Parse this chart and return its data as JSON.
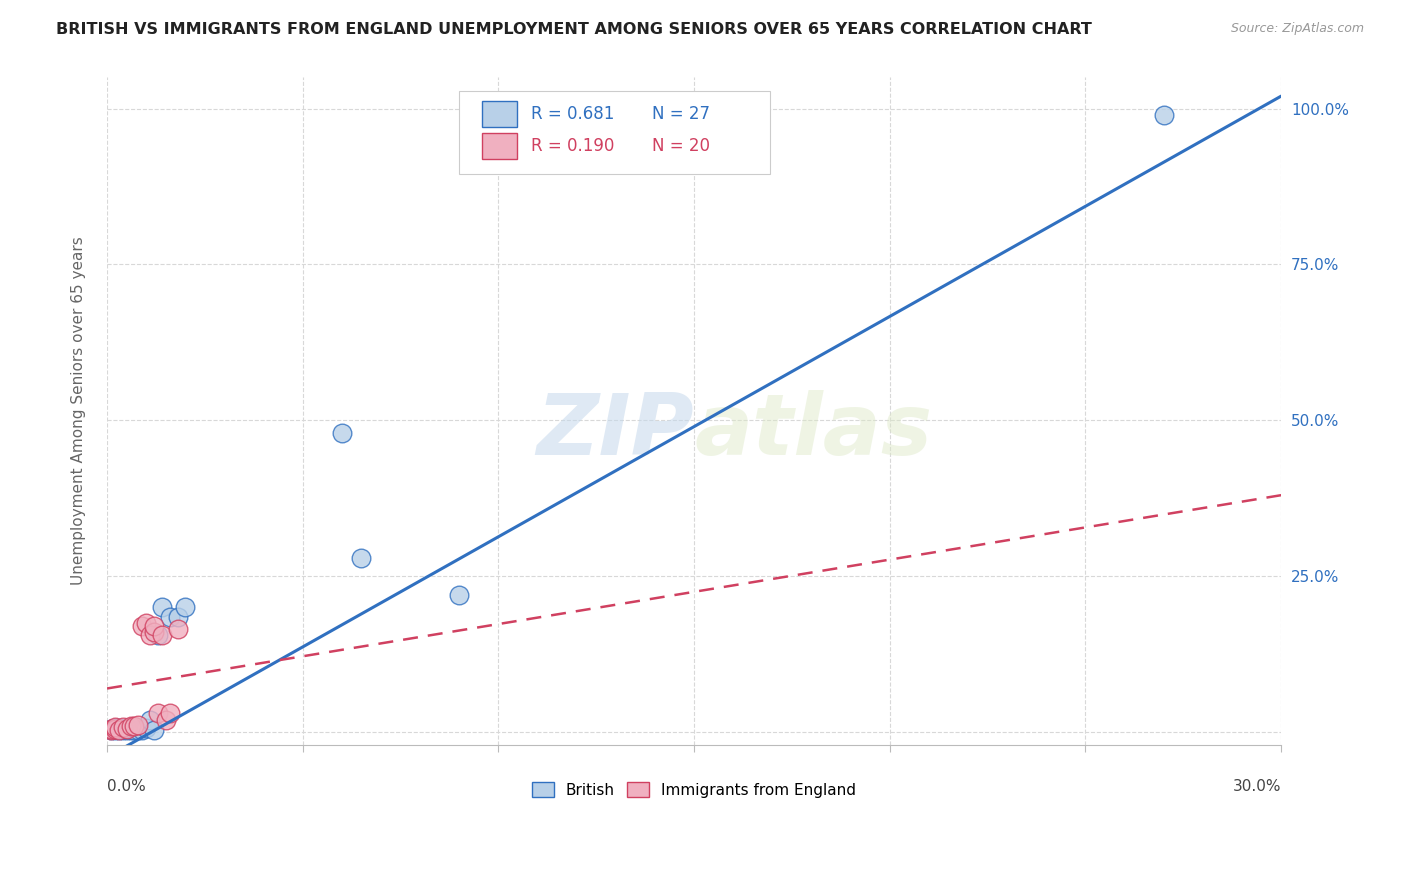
{
  "title": "BRITISH VS IMMIGRANTS FROM ENGLAND UNEMPLOYMENT AMONG SENIORS OVER 65 YEARS CORRELATION CHART",
  "source": "Source: ZipAtlas.com",
  "ylabel": "Unemployment Among Seniors over 65 years",
  "watermark": "ZIPAtlas",
  "legend_british_R": "R = 0.681",
  "legend_british_N": "N = 27",
  "legend_immigrant_R": "R = 0.190",
  "legend_immigrant_N": "N = 20",
  "british_color": "#b8d0e8",
  "british_line_color": "#3070c0",
  "immigrant_color": "#f0b0c0",
  "immigrant_line_color": "#d04060",
  "british_points_x": [
    0.001,
    0.001,
    0.002,
    0.002,
    0.003,
    0.003,
    0.004,
    0.004,
    0.005,
    0.005,
    0.006,
    0.007,
    0.008,
    0.009,
    0.01,
    0.011,
    0.012,
    0.013,
    0.014,
    0.016,
    0.018,
    0.02,
    0.06,
    0.065,
    0.09,
    0.15,
    0.27
  ],
  "british_points_y": [
    0.003,
    0.005,
    0.003,
    0.006,
    0.004,
    0.007,
    0.003,
    0.005,
    0.003,
    0.006,
    0.004,
    0.003,
    0.004,
    0.003,
    0.006,
    0.02,
    0.003,
    0.155,
    0.2,
    0.185,
    0.185,
    0.2,
    0.48,
    0.28,
    0.22,
    0.96,
    0.99
  ],
  "immigrant_points_x": [
    0.001,
    0.001,
    0.002,
    0.002,
    0.003,
    0.004,
    0.005,
    0.006,
    0.007,
    0.008,
    0.009,
    0.01,
    0.011,
    0.012,
    0.012,
    0.013,
    0.014,
    0.015,
    0.016,
    0.018
  ],
  "immigrant_points_y": [
    0.003,
    0.005,
    0.005,
    0.008,
    0.003,
    0.008,
    0.005,
    0.01,
    0.01,
    0.012,
    0.17,
    0.175,
    0.155,
    0.16,
    0.17,
    0.03,
    0.155,
    0.02,
    0.03,
    0.165
  ],
  "xlim": [
    0.0,
    0.3
  ],
  "ylim": [
    -0.02,
    1.05
  ],
  "british_line_x": [
    0.0,
    0.3
  ],
  "british_line_y": [
    -0.04,
    1.02
  ],
  "immigrant_line_x": [
    0.0,
    0.3
  ],
  "immigrant_line_y": [
    0.07,
    0.38
  ],
  "yticks": [
    0.0,
    0.25,
    0.5,
    0.75,
    1.0
  ],
  "ytick_labels": [
    "",
    "25.0%",
    "50.0%",
    "75.0%",
    "100.0%"
  ],
  "xtick_positions": [
    0.0,
    0.05,
    0.1,
    0.15,
    0.2,
    0.25,
    0.3
  ],
  "background_color": "#ffffff",
  "grid_color": "#d8d8d8"
}
